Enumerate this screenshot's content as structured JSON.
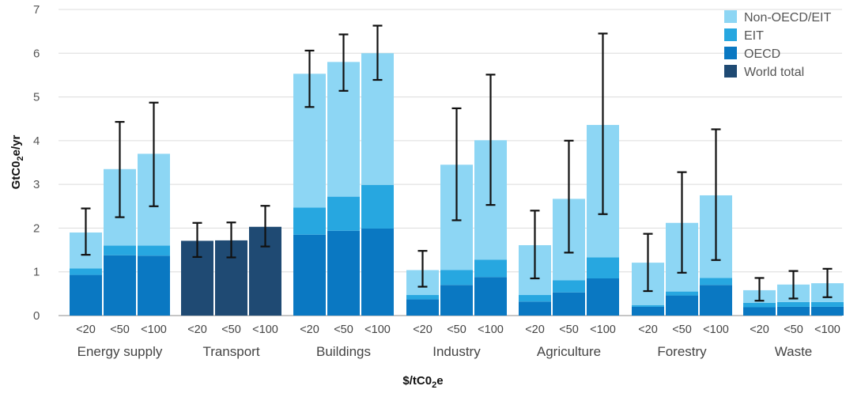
{
  "chart_data": {
    "type": "bar",
    "stacked": true,
    "ylim": [
      0,
      7
    ],
    "yticks": [
      "0",
      "1",
      "2",
      "3",
      "4",
      "5",
      "6",
      "7"
    ],
    "ylabel": {
      "main": "GtC0",
      "sub": "2",
      "rest": "e/yr"
    },
    "xlabel": {
      "main": "$/tC0",
      "sub": "2",
      "rest": "e"
    },
    "grid": true,
    "legend_position": "top-right",
    "sub_categories": [
      "<20",
      "<50",
      "<100"
    ],
    "categories": [
      "Energy supply",
      "Transport",
      "Buildings",
      "Industry",
      "Agriculture",
      "Forestry",
      "Waste"
    ],
    "series": [
      {
        "name": "World total",
        "color": "#1f4a73"
      },
      {
        "name": "OECD",
        "color": "#0a78c2"
      },
      {
        "name": "EIT",
        "color": "#27a7e0"
      },
      {
        "name": "Non-OECD/EIT",
        "color": "#8dd6f4"
      }
    ],
    "legend_order": [
      "Non-OECD/EIT",
      "EIT",
      "OECD",
      "World total"
    ],
    "bars": [
      {
        "category": "Energy supply",
        "sub": "<20",
        "world": 0,
        "oecd": 0.93,
        "eit": 0.15,
        "nonoecd": 0.82,
        "err_low": 1.39,
        "err_high": 2.45
      },
      {
        "category": "Energy supply",
        "sub": "<50",
        "world": 0,
        "oecd": 1.38,
        "eit": 0.22,
        "nonoecd": 1.75,
        "err_low": 2.25,
        "err_high": 4.43
      },
      {
        "category": "Energy supply",
        "sub": "<100",
        "world": 0,
        "oecd": 1.37,
        "eit": 0.23,
        "nonoecd": 2.1,
        "err_low": 2.5,
        "err_high": 4.87
      },
      {
        "category": "Transport",
        "sub": "<20",
        "world": 1.71,
        "oecd": 0,
        "eit": 0,
        "nonoecd": 0,
        "err_low": 1.34,
        "err_high": 2.12
      },
      {
        "category": "Transport",
        "sub": "<50",
        "world": 1.72,
        "oecd": 0,
        "eit": 0,
        "nonoecd": 0,
        "err_low": 1.33,
        "err_high": 2.13
      },
      {
        "category": "Transport",
        "sub": "<100",
        "world": 2.03,
        "oecd": 0,
        "eit": 0,
        "nonoecd": 0,
        "err_low": 1.58,
        "err_high": 2.51
      },
      {
        "category": "Buildings",
        "sub": "<20",
        "world": 0,
        "oecd": 1.85,
        "eit": 0.62,
        "nonoecd": 3.06,
        "err_low": 4.77,
        "err_high": 6.06
      },
      {
        "category": "Buildings",
        "sub": "<50",
        "world": 0,
        "oecd": 1.94,
        "eit": 0.78,
        "nonoecd": 3.08,
        "err_low": 5.14,
        "err_high": 6.43
      },
      {
        "category": "Buildings",
        "sub": "<100",
        "world": 0,
        "oecd": 1.99,
        "eit": 1.0,
        "nonoecd": 3.01,
        "err_low": 5.39,
        "err_high": 6.63
      },
      {
        "category": "Industry",
        "sub": "<20",
        "world": 0,
        "oecd": 0.37,
        "eit": 0.1,
        "nonoecd": 0.57,
        "err_low": 0.66,
        "err_high": 1.48
      },
      {
        "category": "Industry",
        "sub": "<50",
        "world": 0,
        "oecd": 0.7,
        "eit": 0.34,
        "nonoecd": 2.41,
        "err_low": 2.18,
        "err_high": 4.74
      },
      {
        "category": "Industry",
        "sub": "<100",
        "world": 0,
        "oecd": 0.88,
        "eit": 0.4,
        "nonoecd": 2.73,
        "err_low": 2.53,
        "err_high": 5.51
      },
      {
        "category": "Agriculture",
        "sub": "<20",
        "world": 0,
        "oecd": 0.32,
        "eit": 0.15,
        "nonoecd": 1.14,
        "err_low": 0.85,
        "err_high": 2.4
      },
      {
        "category": "Agriculture",
        "sub": "<50",
        "world": 0,
        "oecd": 0.53,
        "eit": 0.28,
        "nonoecd": 1.86,
        "err_low": 1.44,
        "err_high": 4.0
      },
      {
        "category": "Agriculture",
        "sub": "<100",
        "world": 0,
        "oecd": 0.85,
        "eit": 0.48,
        "nonoecd": 3.03,
        "err_low": 2.32,
        "err_high": 6.45
      },
      {
        "category": "Forestry",
        "sub": "<20",
        "world": 0,
        "oecd": 0.2,
        "eit": 0.04,
        "nonoecd": 0.97,
        "err_low": 0.56,
        "err_high": 1.87
      },
      {
        "category": "Forestry",
        "sub": "<50",
        "world": 0,
        "oecd": 0.46,
        "eit": 0.09,
        "nonoecd": 1.57,
        "err_low": 0.98,
        "err_high": 3.28
      },
      {
        "category": "Forestry",
        "sub": "<100",
        "world": 0,
        "oecd": 0.7,
        "eit": 0.16,
        "nonoecd": 1.89,
        "err_low": 1.27,
        "err_high": 4.26
      },
      {
        "category": "Waste",
        "sub": "<20",
        "world": 0,
        "oecd": 0.19,
        "eit": 0.1,
        "nonoecd": 0.29,
        "err_low": 0.34,
        "err_high": 0.86
      },
      {
        "category": "Waste",
        "sub": "<50",
        "world": 0,
        "oecd": 0.2,
        "eit": 0.11,
        "nonoecd": 0.4,
        "err_low": 0.39,
        "err_high": 1.02
      },
      {
        "category": "Waste",
        "sub": "<100",
        "world": 0,
        "oecd": 0.2,
        "eit": 0.11,
        "nonoecd": 0.43,
        "err_low": 0.42,
        "err_high": 1.07
      }
    ]
  }
}
